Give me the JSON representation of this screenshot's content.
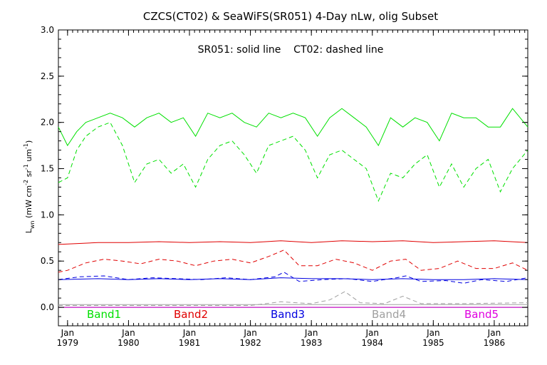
{
  "chart_data": {
    "type": "line",
    "title": "CZCS(CT02) & SeaWiFS(SR051) 4-Day nLw, olig Subset",
    "annotation": "SR051: solid line    CT02: dashed line",
    "ylabel_main": "L",
    "ylabel_sub": "wn",
    "ylabel_units_a": " (mW cm",
    "ylabel_sup1": "-2",
    "ylabel_units_b": " sr",
    "ylabel_sup2": "-1",
    "ylabel_units_c": " um",
    "ylabel_sup3": "-1",
    "ylabel_units_d": ")",
    "ylim": [
      -0.2,
      3.0
    ],
    "xlim": [
      1978.85,
      1986.55
    ],
    "y_ticks": [
      {
        "value": 0.0,
        "label": "0.0"
      },
      {
        "value": 0.5,
        "label": "0.5"
      },
      {
        "value": 1.0,
        "label": "1.0"
      },
      {
        "value": 1.5,
        "label": "1.5"
      },
      {
        "value": 2.0,
        "label": "2.0"
      },
      {
        "value": 2.5,
        "label": "2.5"
      },
      {
        "value": 3.0,
        "label": "3.0"
      }
    ],
    "x_ticks": [
      {
        "value": 1979,
        "month": "Jan",
        "year": "1979"
      },
      {
        "value": 1980,
        "month": "Jan",
        "year": "1980"
      },
      {
        "value": 1981,
        "month": "Jan",
        "year": "1981"
      },
      {
        "value": 1982,
        "month": "Jan",
        "year": "1982"
      },
      {
        "value": 1983,
        "month": "Jan",
        "year": "1983"
      },
      {
        "value": 1984,
        "month": "Jan",
        "year": "1984"
      },
      {
        "value": 1985,
        "month": "Jan",
        "year": "1985"
      },
      {
        "value": 1986,
        "month": "Jan",
        "year": "1986"
      }
    ],
    "grid": false,
    "legend": [
      {
        "label": "Band1",
        "color": "#00e000"
      },
      {
        "label": "Band2",
        "color": "#e00000"
      },
      {
        "label": "Band3",
        "color": "#0000e0"
      },
      {
        "label": "Band4",
        "color": "#a0a0a0"
      },
      {
        "label": "Band5",
        "color": "#e000e0"
      }
    ],
    "series": [
      {
        "name": "Band1",
        "style": "solid",
        "color": "#00e000",
        "x": [
          1978.85,
          1979.0,
          1979.15,
          1979.3,
          1979.5,
          1979.7,
          1979.9,
          1980.1,
          1980.3,
          1980.5,
          1980.7,
          1980.9,
          1981.1,
          1981.3,
          1981.5,
          1981.7,
          1981.9,
          1982.1,
          1982.3,
          1982.5,
          1982.7,
          1982.9,
          1983.1,
          1983.3,
          1983.5,
          1983.7,
          1983.9,
          1984.1,
          1984.3,
          1984.5,
          1984.7,
          1984.9,
          1985.1,
          1985.3,
          1985.5,
          1985.7,
          1985.9,
          1986.1,
          1986.3,
          1986.55
        ],
        "y": [
          1.95,
          1.75,
          1.9,
          2.0,
          2.05,
          2.1,
          2.05,
          1.95,
          2.05,
          2.1,
          2.0,
          2.05,
          1.85,
          2.1,
          2.05,
          2.1,
          2.0,
          1.95,
          2.1,
          2.05,
          2.1,
          2.05,
          1.85,
          2.05,
          2.15,
          2.05,
          1.95,
          1.75,
          2.05,
          1.95,
          2.05,
          2.0,
          1.8,
          2.1,
          2.05,
          2.05,
          1.95,
          1.95,
          2.15,
          1.95
        ]
      },
      {
        "name": "Band1",
        "style": "dashed",
        "color": "#00e000",
        "x": [
          1978.85,
          1979.0,
          1979.15,
          1979.3,
          1979.5,
          1979.7,
          1979.9,
          1980.1,
          1980.3,
          1980.5,
          1980.7,
          1980.9,
          1981.1,
          1981.3,
          1981.5,
          1981.7,
          1981.9,
          1982.1,
          1982.3,
          1982.5,
          1982.7,
          1982.9,
          1983.1,
          1983.3,
          1983.5,
          1983.7,
          1983.9,
          1984.1,
          1984.3,
          1984.5,
          1984.7,
          1984.9,
          1985.1,
          1985.3,
          1985.5,
          1985.7,
          1985.9,
          1986.1,
          1986.3,
          1986.55
        ],
        "y": [
          1.35,
          1.4,
          1.7,
          1.85,
          1.95,
          2.0,
          1.75,
          1.35,
          1.55,
          1.6,
          1.45,
          1.55,
          1.3,
          1.6,
          1.75,
          1.8,
          1.65,
          1.45,
          1.75,
          1.8,
          1.85,
          1.7,
          1.4,
          1.65,
          1.7,
          1.6,
          1.5,
          1.15,
          1.45,
          1.4,
          1.55,
          1.65,
          1.3,
          1.55,
          1.3,
          1.5,
          1.6,
          1.25,
          1.5,
          1.7
        ]
      },
      {
        "name": "Band2",
        "style": "solid",
        "color": "#e00000",
        "x": [
          1978.85,
          1979.5,
          1980.0,
          1980.5,
          1981.0,
          1981.5,
          1982.0,
          1982.5,
          1983.0,
          1983.5,
          1984.0,
          1984.5,
          1985.0,
          1985.5,
          1986.0,
          1986.55
        ],
        "y": [
          0.68,
          0.7,
          0.7,
          0.71,
          0.7,
          0.71,
          0.7,
          0.72,
          0.7,
          0.72,
          0.71,
          0.72,
          0.7,
          0.71,
          0.72,
          0.7
        ]
      },
      {
        "name": "Band2",
        "style": "dashed",
        "color": "#e00000",
        "x": [
          1978.85,
          1979.0,
          1979.3,
          1979.6,
          1979.9,
          1980.2,
          1980.5,
          1980.8,
          1981.1,
          1981.4,
          1981.7,
          1982.0,
          1982.3,
          1982.55,
          1982.8,
          1983.1,
          1983.4,
          1983.7,
          1984.0,
          1984.3,
          1984.55,
          1984.8,
          1985.1,
          1985.4,
          1985.7,
          1986.0,
          1986.3,
          1986.55
        ],
        "y": [
          0.38,
          0.4,
          0.48,
          0.52,
          0.5,
          0.47,
          0.52,
          0.5,
          0.45,
          0.5,
          0.52,
          0.48,
          0.55,
          0.62,
          0.45,
          0.45,
          0.52,
          0.48,
          0.4,
          0.5,
          0.52,
          0.4,
          0.42,
          0.5,
          0.42,
          0.42,
          0.48,
          0.4
        ]
      },
      {
        "name": "Band3",
        "style": "solid",
        "color": "#0000e0",
        "x": [
          1978.85,
          1979.5,
          1980.0,
          1980.5,
          1981.0,
          1981.5,
          1982.0,
          1982.5,
          1983.0,
          1983.5,
          1984.0,
          1984.5,
          1985.0,
          1985.5,
          1986.0,
          1986.55
        ],
        "y": [
          0.3,
          0.31,
          0.3,
          0.31,
          0.3,
          0.31,
          0.3,
          0.32,
          0.31,
          0.31,
          0.3,
          0.31,
          0.3,
          0.3,
          0.31,
          0.3
        ]
      },
      {
        "name": "Band3",
        "style": "dashed",
        "color": "#0000e0",
        "x": [
          1978.85,
          1979.2,
          1979.6,
          1980.0,
          1980.4,
          1980.8,
          1981.2,
          1981.6,
          1982.0,
          1982.4,
          1982.55,
          1982.8,
          1983.2,
          1983.6,
          1984.0,
          1984.4,
          1984.55,
          1984.8,
          1985.2,
          1985.5,
          1985.8,
          1986.2,
          1986.55
        ],
        "y": [
          0.3,
          0.33,
          0.34,
          0.3,
          0.32,
          0.31,
          0.3,
          0.32,
          0.3,
          0.33,
          0.38,
          0.28,
          0.3,
          0.31,
          0.28,
          0.32,
          0.34,
          0.28,
          0.29,
          0.26,
          0.3,
          0.28,
          0.32
        ]
      },
      {
        "name": "Band4",
        "style": "solid",
        "color": "#a0a0a0",
        "x": [
          1978.85,
          1986.55
        ],
        "y": [
          0.03,
          0.03
        ]
      },
      {
        "name": "Band4",
        "style": "dashed",
        "color": "#a0a0a0",
        "x": [
          1978.85,
          1982.0,
          1982.5,
          1983.0,
          1983.3,
          1983.55,
          1983.8,
          1984.2,
          1984.5,
          1984.8,
          1985.5,
          1986.55
        ],
        "y": [
          0.02,
          0.02,
          0.06,
          0.04,
          0.08,
          0.17,
          0.05,
          0.04,
          0.12,
          0.04,
          0.04,
          0.05
        ]
      },
      {
        "name": "Band5",
        "style": "solid",
        "color": "#e000e0",
        "x": [
          1978.85,
          1986.55
        ],
        "y": [
          0.0,
          0.0
        ]
      }
    ]
  }
}
